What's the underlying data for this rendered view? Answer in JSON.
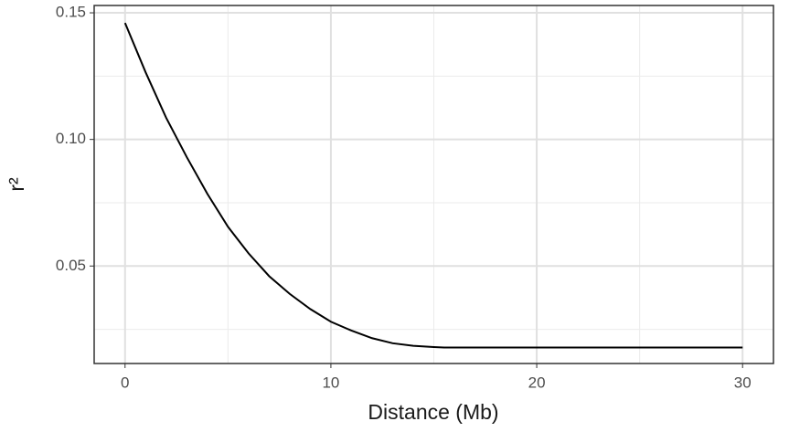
{
  "chart_data": {
    "type": "line",
    "xlabel": "Distance (Mb)",
    "ylabel": "r²",
    "x": [
      0,
      1,
      2,
      3,
      4,
      5,
      6,
      7,
      8,
      9,
      10,
      11,
      12,
      13,
      14,
      15,
      15.5,
      30
    ],
    "series": [
      {
        "color": "#000000",
        "values": [
          0.146,
          0.1265,
          0.1085,
          0.093,
          0.0785,
          0.0655,
          0.055,
          0.046,
          0.039,
          0.033,
          0.028,
          0.0245,
          0.0215,
          0.0195,
          0.0185,
          0.018,
          0.0178,
          0.0178
        ]
      }
    ],
    "xlim": [
      -1.5,
      31.5
    ],
    "xticks": [
      0,
      10,
      20,
      30
    ],
    "ylim": [
      0.0115,
      0.1529
    ],
    "yticks": [
      {
        "value": 0.05,
        "label": "0.05"
      },
      {
        "value": 0.1,
        "label": "0.10"
      },
      {
        "value": 0.15,
        "label": "0.15"
      }
    ],
    "grid": true,
    "minor_grid": true
  }
}
